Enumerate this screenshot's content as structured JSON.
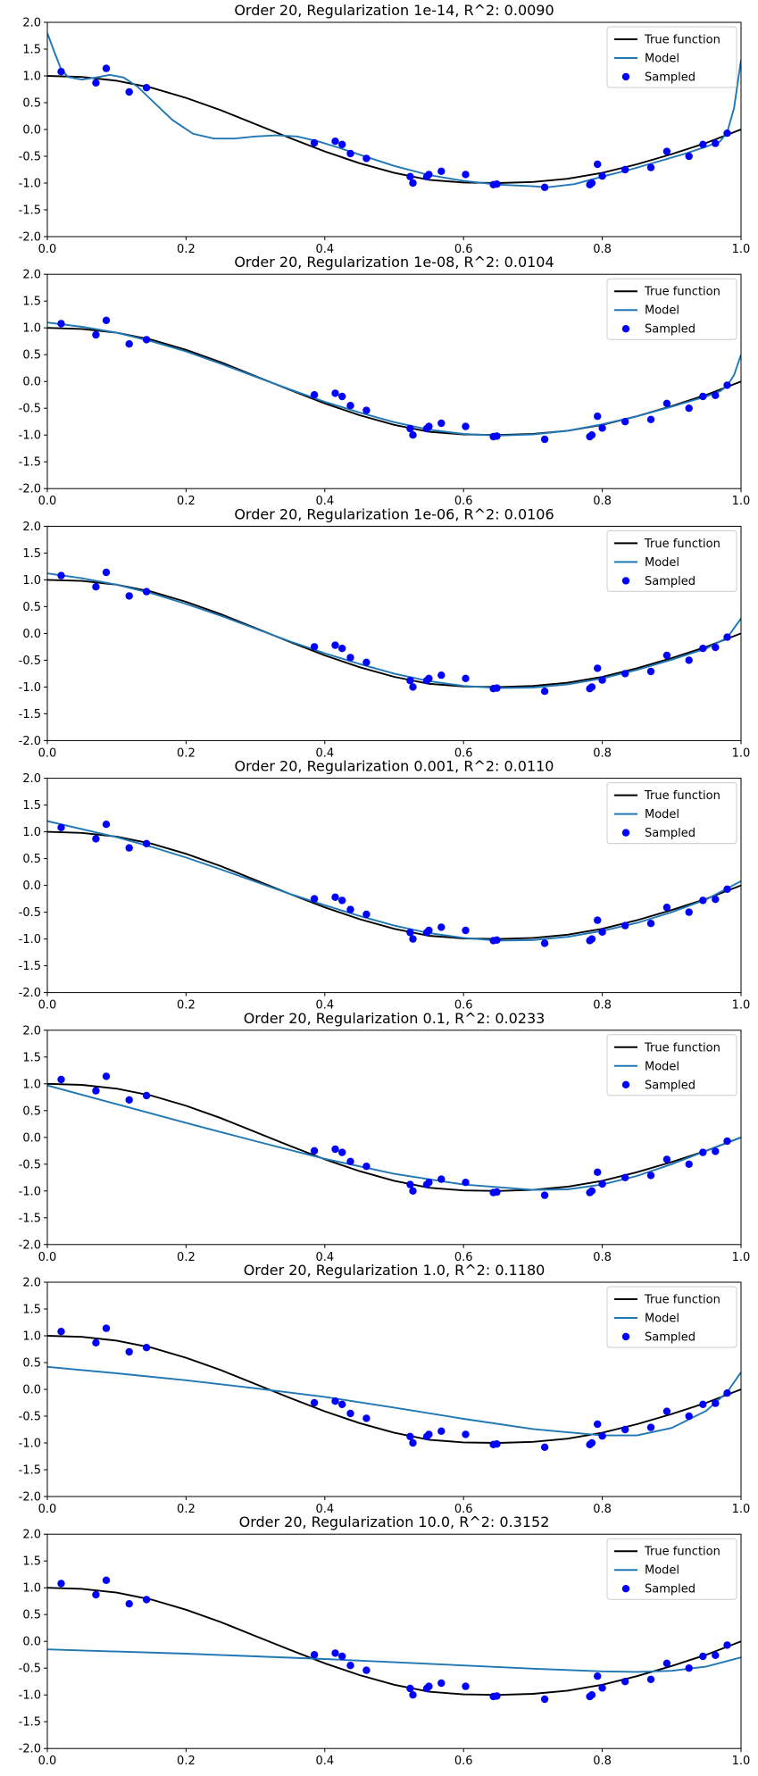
{
  "figure": {
    "legend": {
      "true_label": "True function",
      "model_label": "Model",
      "sampled_label": "Sampled"
    },
    "colors": {
      "true": "#000000",
      "model": "#1f77b4",
      "sampled": "#0000ff"
    }
  },
  "chart_data": [
    {
      "type": "line",
      "title": "Order 20, Regularization 1e-14, R^2: 0.0090",
      "xlim": [
        0,
        1
      ],
      "ylim": [
        -2,
        2
      ],
      "xticks": [
        "0.0",
        "0.2",
        "0.4",
        "0.6",
        "0.8",
        "1.0"
      ],
      "yticks": [
        "-2.0",
        "-1.5",
        "-1.0",
        "-0.5",
        "0.0",
        "0.5",
        "1.0",
        "1.5",
        "2.0"
      ],
      "model": {
        "x": [
          0.0,
          0.01,
          0.02,
          0.03,
          0.05,
          0.07,
          0.09,
          0.11,
          0.13,
          0.15,
          0.18,
          0.21,
          0.24,
          0.27,
          0.3,
          0.33,
          0.36,
          0.39,
          0.42,
          0.45,
          0.5,
          0.55,
          0.6,
          0.65,
          0.7,
          0.72,
          0.76,
          0.8,
          0.84,
          0.88,
          0.92,
          0.95,
          0.97,
          0.98,
          0.99,
          1.0
        ],
        "y": [
          1.8,
          1.45,
          1.12,
          0.98,
          0.93,
          0.97,
          1.02,
          0.97,
          0.8,
          0.55,
          0.18,
          -0.08,
          -0.17,
          -0.17,
          -0.13,
          -0.11,
          -0.13,
          -0.22,
          -0.34,
          -0.47,
          -0.68,
          -0.85,
          -0.96,
          -1.03,
          -1.06,
          -1.08,
          -1.02,
          -0.88,
          -0.75,
          -0.6,
          -0.45,
          -0.32,
          -0.22,
          -0.05,
          0.4,
          1.3
        ]
      }
    },
    {
      "type": "line",
      "title": "Order 20, Regularization 1e-08, R^2: 0.0104",
      "xlim": [
        0,
        1
      ],
      "ylim": [
        -2,
        2
      ],
      "xticks": [
        "0.0",
        "0.2",
        "0.4",
        "0.6",
        "0.8",
        "1.0"
      ],
      "yticks": [
        "-2.0",
        "-1.5",
        "-1.0",
        "-0.5",
        "0.0",
        "0.5",
        "1.0",
        "1.5",
        "2.0"
      ],
      "model": {
        "x": [
          0.0,
          0.05,
          0.1,
          0.15,
          0.2,
          0.25,
          0.3,
          0.35,
          0.4,
          0.45,
          0.5,
          0.55,
          0.6,
          0.65,
          0.7,
          0.75,
          0.8,
          0.85,
          0.9,
          0.95,
          0.97,
          0.98,
          0.99,
          1.0
        ],
        "y": [
          1.1,
          1.02,
          0.91,
          0.75,
          0.56,
          0.33,
          0.09,
          -0.15,
          -0.38,
          -0.58,
          -0.76,
          -0.9,
          -0.98,
          -1.01,
          -0.99,
          -0.92,
          -0.8,
          -0.65,
          -0.47,
          -0.28,
          -0.18,
          -0.08,
          0.12,
          0.5
        ]
      }
    },
    {
      "type": "line",
      "title": "Order 20, Regularization 1e-06, R^2: 0.0106",
      "xlim": [
        0,
        1
      ],
      "ylim": [
        -2,
        2
      ],
      "xticks": [
        "0.0",
        "0.2",
        "0.4",
        "0.6",
        "0.8",
        "1.0"
      ],
      "yticks": [
        "-2.0",
        "-1.5",
        "-1.0",
        "-0.5",
        "0.0",
        "0.5",
        "1.0",
        "1.5",
        "2.0"
      ],
      "model": {
        "x": [
          0.0,
          0.05,
          0.1,
          0.15,
          0.2,
          0.25,
          0.3,
          0.35,
          0.4,
          0.45,
          0.5,
          0.55,
          0.6,
          0.65,
          0.7,
          0.75,
          0.8,
          0.85,
          0.9,
          0.95,
          0.98,
          1.0
        ],
        "y": [
          1.12,
          1.03,
          0.91,
          0.75,
          0.55,
          0.33,
          0.09,
          -0.15,
          -0.37,
          -0.57,
          -0.75,
          -0.89,
          -0.98,
          -1.02,
          -1.01,
          -0.95,
          -0.84,
          -0.68,
          -0.49,
          -0.28,
          -0.08,
          0.28
        ]
      }
    },
    {
      "type": "line",
      "title": "Order 20, Regularization 0.001, R^2: 0.0110",
      "xlim": [
        0,
        1
      ],
      "ylim": [
        -2,
        2
      ],
      "xticks": [
        "0.0",
        "0.2",
        "0.4",
        "0.6",
        "0.8",
        "1.0"
      ],
      "yticks": [
        "-2.0",
        "-1.5",
        "-1.0",
        "-0.5",
        "0.0",
        "0.5",
        "1.0",
        "1.5",
        "2.0"
      ],
      "model": {
        "x": [
          0.0,
          0.05,
          0.1,
          0.15,
          0.2,
          0.25,
          0.3,
          0.35,
          0.4,
          0.45,
          0.5,
          0.55,
          0.6,
          0.65,
          0.7,
          0.75,
          0.8,
          0.85,
          0.9,
          0.95,
          1.0
        ],
        "y": [
          1.2,
          1.05,
          0.9,
          0.72,
          0.52,
          0.3,
          0.07,
          -0.16,
          -0.37,
          -0.57,
          -0.75,
          -0.89,
          -0.98,
          -1.03,
          -1.02,
          -0.96,
          -0.85,
          -0.7,
          -0.5,
          -0.26,
          0.08
        ]
      }
    },
    {
      "type": "line",
      "title": "Order 20, Regularization 0.1, R^2: 0.0233",
      "xlim": [
        0,
        1
      ],
      "ylim": [
        -2,
        2
      ],
      "xticks": [
        "0.0",
        "0.2",
        "0.4",
        "0.6",
        "0.8",
        "1.0"
      ],
      "yticks": [
        "-2.0",
        "-1.5",
        "-1.0",
        "-0.5",
        "0.0",
        "0.5",
        "1.0",
        "1.5",
        "2.0"
      ],
      "model": {
        "x": [
          0.0,
          0.1,
          0.2,
          0.3,
          0.4,
          0.5,
          0.6,
          0.7,
          0.75,
          0.8,
          0.85,
          0.9,
          0.95,
          1.0
        ],
        "y": [
          0.97,
          0.62,
          0.27,
          -0.07,
          -0.4,
          -0.68,
          -0.88,
          -0.98,
          -0.97,
          -0.88,
          -0.72,
          -0.5,
          -0.25,
          0.0
        ]
      }
    },
    {
      "type": "line",
      "title": "Order 20, Regularization 1.0, R^2: 0.1180",
      "xlim": [
        0,
        1
      ],
      "ylim": [
        -2,
        2
      ],
      "xticks": [
        "0.0",
        "0.2",
        "0.4",
        "0.6",
        "0.8",
        "1.0"
      ],
      "yticks": [
        "-2.0",
        "-1.5",
        "-1.0",
        "-0.5",
        "0.0",
        "0.5",
        "1.0",
        "1.5",
        "2.0"
      ],
      "model": {
        "x": [
          0.0,
          0.1,
          0.2,
          0.3,
          0.4,
          0.5,
          0.6,
          0.7,
          0.8,
          0.85,
          0.9,
          0.95,
          0.98,
          1.0
        ],
        "y": [
          0.42,
          0.3,
          0.17,
          0.02,
          -0.14,
          -0.34,
          -0.55,
          -0.74,
          -0.86,
          -0.86,
          -0.72,
          -0.4,
          -0.05,
          0.32
        ]
      }
    },
    {
      "type": "line",
      "title": "Order 20, Regularization 10.0, R^2: 0.3152",
      "xlim": [
        0,
        1
      ],
      "ylim": [
        -2,
        2
      ],
      "xticks": [
        "0.0",
        "0.2",
        "0.4",
        "0.6",
        "0.8",
        "1.0"
      ],
      "yticks": [
        "-2.0",
        "-1.5",
        "-1.0",
        "-0.5",
        "0.0",
        "0.5",
        "1.0",
        "1.5",
        "2.0"
      ],
      "model": {
        "x": [
          0.0,
          0.1,
          0.2,
          0.3,
          0.4,
          0.5,
          0.6,
          0.7,
          0.8,
          0.85,
          0.9,
          0.95,
          1.0
        ],
        "y": [
          -0.15,
          -0.19,
          -0.23,
          -0.28,
          -0.33,
          -0.39,
          -0.45,
          -0.51,
          -0.56,
          -0.57,
          -0.55,
          -0.47,
          -0.3
        ]
      }
    }
  ],
  "true_function": {
    "x": [
      0.0,
      0.05,
      0.1,
      0.15,
      0.2,
      0.25,
      0.3,
      0.35,
      0.4,
      0.45,
      0.5,
      0.55,
      0.6,
      0.65,
      0.7,
      0.75,
      0.8,
      0.85,
      0.9,
      0.95,
      1.0
    ],
    "y": [
      1.0,
      0.98,
      0.91,
      0.78,
      0.59,
      0.36,
      0.1,
      -0.16,
      -0.41,
      -0.63,
      -0.81,
      -0.94,
      -0.99,
      -1.0,
      -0.98,
      -0.92,
      -0.81,
      -0.65,
      -0.46,
      -0.25,
      0.0
    ]
  },
  "sampled": {
    "x": [
      0.02,
      0.07,
      0.085,
      0.118,
      0.143,
      0.385,
      0.415,
      0.425,
      0.437,
      0.46,
      0.523,
      0.527,
      0.547,
      0.55,
      0.568,
      0.603,
      0.643,
      0.648,
      0.717,
      0.782,
      0.785,
      0.793,
      0.8,
      0.833,
      0.87,
      0.893,
      0.925,
      0.945,
      0.963,
      0.98
    ],
    "y": [
      1.08,
      0.87,
      1.14,
      0.7,
      0.78,
      -0.25,
      -0.22,
      -0.28,
      -0.45,
      -0.54,
      -0.88,
      -1.0,
      -0.88,
      -0.84,
      -0.78,
      -0.84,
      -1.03,
      -1.02,
      -1.08,
      -1.03,
      -1.0,
      -0.65,
      -0.87,
      -0.75,
      -0.71,
      -0.41,
      -0.5,
      -0.28,
      -0.26,
      -0.07
    ]
  }
}
